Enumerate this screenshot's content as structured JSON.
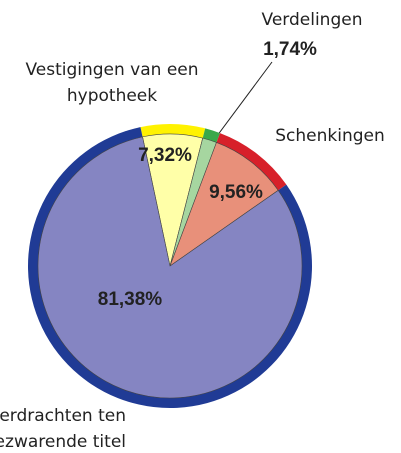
{
  "chart_data": {
    "type": "pie",
    "categories": [
      "Vestigingen van een hypotheek",
      "Verdelingen",
      "Schenkingen",
      "Overdrachten ten bezwarende titel"
    ],
    "values": [
      7.32,
      1.74,
      9.56,
      81.38
    ],
    "value_labels": [
      "7,32%",
      "1,74%",
      "9,56%",
      "81,38%"
    ],
    "colors": [
      "#ffffa8",
      "#a6d6a0",
      "#e8907a",
      "#8585c2"
    ],
    "ring_colors": [
      "#fff200",
      "#3aa84a",
      "#d7202a",
      "#203b95"
    ]
  }
}
